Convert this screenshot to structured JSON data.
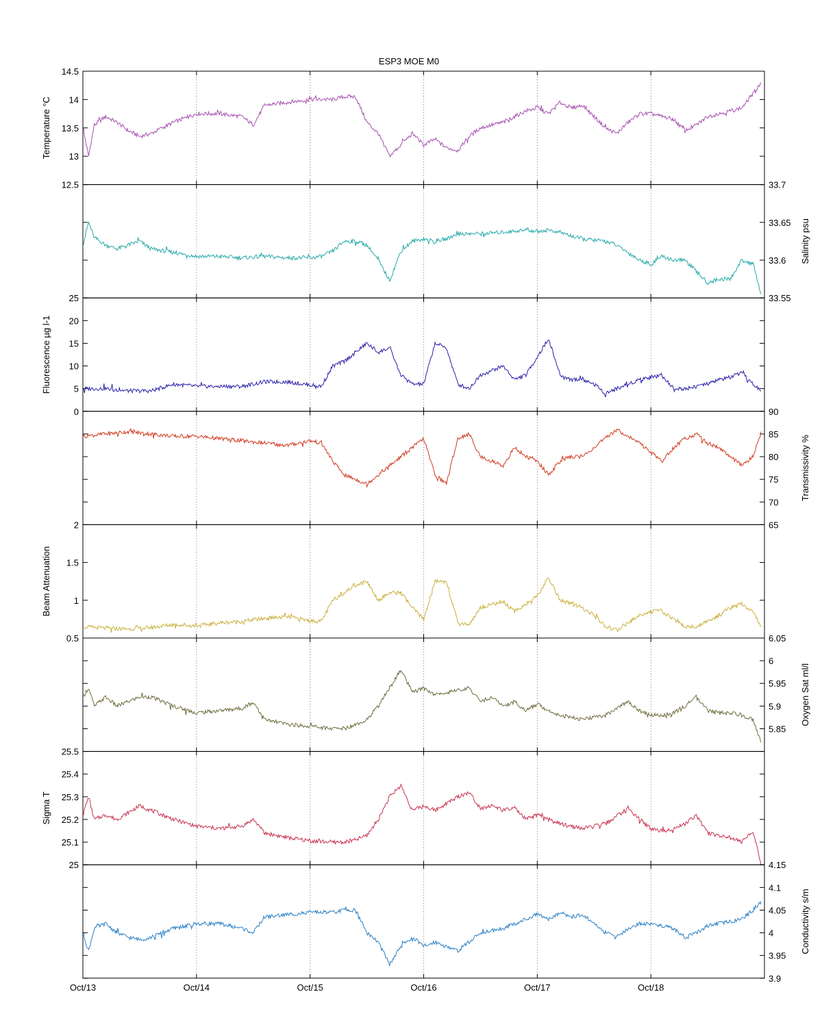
{
  "title": "ESP3 MOE   M0",
  "x_axis": {
    "type": "date",
    "range": [
      "2012-10-13",
      "2012-10-19"
    ],
    "ticks": [
      {
        "label": "Oct/13",
        "value": 0
      },
      {
        "label": "Oct/14",
        "value": 1
      },
      {
        "label": "Oct/15",
        "value": 2
      },
      {
        "label": "Oct/16",
        "value": 3
      },
      {
        "label": "Oct/17",
        "value": 4
      },
      {
        "label": "Oct/18",
        "value": 5
      }
    ],
    "grid": "dotted vertical"
  },
  "chart_data": [
    {
      "type": "line",
      "ylabel": "Temperature °C",
      "axis_side": "left",
      "color": "#a64fb0",
      "ylim": [
        12.5,
        14.5
      ],
      "ticks": [
        12.5,
        13,
        13.5,
        14,
        14.5
      ],
      "x": [
        0,
        0.05,
        0.1,
        0.2,
        0.3,
        0.4,
        0.5,
        0.6,
        0.8,
        1,
        1.2,
        1.4,
        1.5,
        1.6,
        2,
        2.2,
        2.3,
        2.4,
        2.5,
        2.6,
        2.7,
        2.8,
        2.9,
        3,
        3.1,
        3.2,
        3.3,
        3.4,
        3.5,
        3.7,
        3.8,
        3.9,
        4,
        4.1,
        4.2,
        4.3,
        4.4,
        4.6,
        4.7,
        4.8,
        4.9,
        5,
        5.1,
        5.2,
        5.3,
        5.4,
        5.5,
        5.6,
        5.7,
        5.8,
        5.9,
        5.97
      ],
      "values": [
        13.5,
        13.0,
        13.55,
        13.7,
        13.6,
        13.45,
        13.35,
        13.4,
        13.6,
        13.75,
        13.75,
        13.7,
        13.55,
        13.9,
        14.0,
        14.0,
        14.05,
        14.05,
        13.6,
        13.4,
        13.0,
        13.2,
        13.4,
        13.2,
        13.3,
        13.15,
        13.1,
        13.35,
        13.5,
        13.6,
        13.7,
        13.8,
        13.85,
        13.75,
        13.95,
        13.85,
        13.9,
        13.5,
        13.4,
        13.6,
        13.75,
        13.75,
        13.7,
        13.65,
        13.45,
        13.55,
        13.7,
        13.75,
        13.8,
        13.85,
        14.1,
        14.3
      ]
    },
    {
      "type": "line",
      "ylabel": "Salinity psu",
      "axis_side": "right",
      "color": "#27a9a8",
      "ylim": [
        33.55,
        33.7
      ],
      "ticks": [
        33.55,
        33.6,
        33.65,
        33.7
      ],
      "x": [
        0,
        0.05,
        0.1,
        0.2,
        0.3,
        0.4,
        0.5,
        0.6,
        0.8,
        1,
        1.2,
        1.4,
        1.6,
        1.8,
        2,
        2.1,
        2.2,
        2.3,
        2.4,
        2.5,
        2.6,
        2.7,
        2.8,
        2.9,
        3,
        3.1,
        3.2,
        3.3,
        3.5,
        3.7,
        3.9,
        4,
        4.1,
        4.2,
        4.3,
        4.4,
        4.6,
        4.7,
        4.8,
        4.9,
        5,
        5.1,
        5.2,
        5.3,
        5.4,
        5.5,
        5.6,
        5.7,
        5.8,
        5.9,
        5.97
      ],
      "values": [
        33.62,
        33.65,
        33.63,
        33.62,
        33.615,
        33.62,
        33.625,
        33.615,
        33.61,
        33.605,
        33.605,
        33.603,
        33.605,
        33.603,
        33.603,
        33.605,
        33.612,
        33.625,
        33.625,
        33.62,
        33.6,
        33.573,
        33.612,
        33.625,
        33.628,
        33.625,
        33.628,
        33.635,
        33.635,
        33.637,
        33.64,
        33.638,
        33.64,
        33.637,
        33.632,
        33.628,
        33.625,
        33.62,
        33.61,
        33.6,
        33.595,
        33.605,
        33.6,
        33.6,
        33.585,
        33.57,
        33.575,
        33.575,
        33.6,
        33.595,
        33.555
      ]
    },
    {
      "type": "line",
      "ylabel": "Fluorescence µg l-1",
      "axis_side": "left",
      "color": "#2a1fa8",
      "ylim": [
        0,
        25
      ],
      "ticks": [
        0,
        5,
        10,
        15,
        20,
        25
      ],
      "x": [
        0,
        0.2,
        0.4,
        0.6,
        0.8,
        1,
        1.2,
        1.4,
        1.6,
        1.8,
        2,
        2.1,
        2.2,
        2.3,
        2.4,
        2.5,
        2.6,
        2.7,
        2.8,
        2.9,
        3,
        3.1,
        3.2,
        3.3,
        3.4,
        3.5,
        3.6,
        3.7,
        3.8,
        3.9,
        4,
        4.1,
        4.2,
        4.3,
        4.4,
        4.5,
        4.6,
        4.7,
        4.8,
        4.9,
        5,
        5.1,
        5.2,
        5.3,
        5.4,
        5.5,
        5.6,
        5.7,
        5.8,
        5.9,
        5.97
      ],
      "values": [
        5,
        5,
        4.5,
        4.5,
        6,
        5.5,
        5.5,
        5.5,
        6.5,
        6.5,
        5.8,
        5.5,
        10,
        11,
        13,
        15,
        13,
        14,
        8,
        6,
        6,
        15,
        14,
        6,
        5,
        8,
        9,
        10,
        7,
        8,
        12,
        16,
        8,
        7,
        7,
        6,
        4,
        5,
        6,
        7,
        7.5,
        8,
        5,
        5,
        5.5,
        6,
        7,
        7.5,
        8.5,
        6,
        4.5
      ]
    },
    {
      "type": "line",
      "ylabel": "Transmissivity %",
      "axis_side": "right",
      "color": "#d03a1f",
      "ylim": [
        65,
        90
      ],
      "ticks": [
        65,
        70,
        75,
        80,
        85,
        90
      ],
      "x": [
        0,
        0.2,
        0.4,
        0.6,
        0.8,
        1,
        1.2,
        1.4,
        1.6,
        1.8,
        2,
        2.1,
        2.2,
        2.3,
        2.4,
        2.5,
        2.6,
        2.7,
        2.8,
        2.9,
        3,
        3.1,
        3.2,
        3.3,
        3.4,
        3.5,
        3.6,
        3.7,
        3.8,
        3.9,
        4,
        4.1,
        4.2,
        4.3,
        4.4,
        4.5,
        4.6,
        4.7,
        4.8,
        4.9,
        5,
        5.1,
        5.2,
        5.3,
        5.4,
        5.5,
        5.6,
        5.7,
        5.8,
        5.9,
        5.97
      ],
      "values": [
        84.5,
        85,
        85.5,
        85,
        84.5,
        84.5,
        84,
        83.5,
        83,
        82.5,
        83.5,
        83,
        79,
        76,
        75,
        74,
        76,
        78,
        80,
        82,
        84,
        76,
        74,
        84,
        85,
        80,
        79,
        78,
        82,
        80,
        79,
        76,
        79,
        80,
        80,
        82,
        84,
        86,
        84.5,
        83,
        81,
        79,
        82,
        84,
        85,
        83,
        82,
        80,
        78,
        80,
        85.5
      ]
    },
    {
      "type": "line",
      "ylabel": "Beam Attenuation",
      "axis_side": "left",
      "color": "#c9ae3a",
      "ylim": [
        0.5,
        2
      ],
      "ticks": [
        0.5,
        1,
        1.5,
        2
      ],
      "x": [
        0,
        0.2,
        0.4,
        0.6,
        0.8,
        1,
        1.2,
        1.4,
        1.6,
        1.8,
        2,
        2.1,
        2.2,
        2.3,
        2.4,
        2.5,
        2.6,
        2.7,
        2.8,
        2.9,
        3,
        3.1,
        3.2,
        3.3,
        3.4,
        3.5,
        3.6,
        3.7,
        3.8,
        3.9,
        4,
        4.1,
        4.2,
        4.3,
        4.4,
        4.5,
        4.6,
        4.7,
        4.8,
        4.9,
        5,
        5.1,
        5.2,
        5.3,
        5.4,
        5.5,
        5.6,
        5.7,
        5.8,
        5.9,
        5.97
      ],
      "values": [
        0.65,
        0.63,
        0.62,
        0.64,
        0.68,
        0.66,
        0.7,
        0.72,
        0.76,
        0.78,
        0.73,
        0.72,
        1.0,
        1.1,
        1.2,
        1.25,
        1.0,
        1.1,
        1.1,
        0.9,
        0.75,
        1.25,
        1.25,
        0.7,
        0.68,
        0.9,
        0.95,
        0.98,
        0.85,
        0.95,
        1.05,
        1.3,
        1.0,
        0.95,
        0.9,
        0.8,
        0.65,
        0.6,
        0.7,
        0.8,
        0.85,
        0.85,
        0.75,
        0.65,
        0.65,
        0.72,
        0.8,
        0.9,
        0.95,
        0.85,
        0.65
      ]
    },
    {
      "type": "line",
      "ylabel": "Oxygen Sat ml/l",
      "axis_side": "right",
      "color": "#6e6b3c",
      "ylim": [
        5.8,
        6.05
      ],
      "ticks": [
        5.85,
        5.9,
        5.95,
        6,
        6.05
      ],
      "x": [
        0,
        0.05,
        0.1,
        0.2,
        0.3,
        0.4,
        0.5,
        0.6,
        0.8,
        1,
        1.2,
        1.4,
        1.5,
        1.6,
        1.8,
        2,
        2.2,
        2.3,
        2.4,
        2.5,
        2.6,
        2.7,
        2.8,
        2.9,
        3,
        3.1,
        3.2,
        3.3,
        3.4,
        3.5,
        3.6,
        3.7,
        3.8,
        3.9,
        4,
        4.1,
        4.2,
        4.4,
        4.6,
        4.8,
        4.9,
        5,
        5.1,
        5.2,
        5.3,
        5.4,
        5.5,
        5.6,
        5.7,
        5.8,
        5.9,
        5.97
      ],
      "values": [
        5.92,
        5.94,
        5.9,
        5.92,
        5.9,
        5.91,
        5.92,
        5.92,
        5.9,
        5.885,
        5.89,
        5.895,
        5.91,
        5.87,
        5.86,
        5.855,
        5.85,
        5.85,
        5.86,
        5.87,
        5.9,
        5.94,
        5.98,
        5.93,
        5.94,
        5.925,
        5.93,
        5.935,
        5.94,
        5.91,
        5.92,
        5.9,
        5.91,
        5.89,
        5.905,
        5.89,
        5.88,
        5.87,
        5.88,
        5.91,
        5.89,
        5.88,
        5.88,
        5.885,
        5.9,
        5.92,
        5.89,
        5.885,
        5.885,
        5.88,
        5.87,
        5.82
      ]
    },
    {
      "type": "line",
      "ylabel": "Sigma T",
      "axis_side": "left",
      "color": "#c8334e",
      "ylim": [
        25,
        25.5
      ],
      "ticks": [
        25,
        25.1,
        25.2,
        25.3,
        25.4,
        25.5
      ],
      "x": [
        0,
        0.05,
        0.1,
        0.2,
        0.3,
        0.4,
        0.5,
        0.6,
        0.8,
        1,
        1.2,
        1.4,
        1.5,
        1.6,
        1.8,
        2,
        2.2,
        2.3,
        2.4,
        2.5,
        2.6,
        2.7,
        2.8,
        2.9,
        3,
        3.1,
        3.2,
        3.3,
        3.4,
        3.5,
        3.6,
        3.7,
        3.8,
        3.9,
        4,
        4.1,
        4.2,
        4.4,
        4.6,
        4.8,
        4.9,
        5,
        5.1,
        5.2,
        5.3,
        5.4,
        5.5,
        5.6,
        5.7,
        5.8,
        5.9,
        5.97
      ],
      "values": [
        25.22,
        25.3,
        25.2,
        25.22,
        25.2,
        25.23,
        25.26,
        25.24,
        25.2,
        25.17,
        25.16,
        25.17,
        25.2,
        25.14,
        25.12,
        25.105,
        25.1,
        25.1,
        25.11,
        25.13,
        25.2,
        25.3,
        25.35,
        25.24,
        25.26,
        25.24,
        25.27,
        25.3,
        25.32,
        25.25,
        25.26,
        25.24,
        25.25,
        25.2,
        25.22,
        25.2,
        25.18,
        25.16,
        25.18,
        25.25,
        25.2,
        25.16,
        25.15,
        25.16,
        25.18,
        25.22,
        25.14,
        25.13,
        25.12,
        25.1,
        25.15,
        25.0
      ]
    },
    {
      "type": "line",
      "ylabel": "Conductivity s/m",
      "axis_side": "right",
      "color": "#2a7fc4",
      "ylim": [
        3.9,
        4.15
      ],
      "ticks": [
        3.9,
        3.95,
        4,
        4.05,
        4.1,
        4.15
      ],
      "x": [
        0,
        0.05,
        0.1,
        0.2,
        0.3,
        0.4,
        0.5,
        0.6,
        0.8,
        1,
        1.2,
        1.4,
        1.5,
        1.6,
        2,
        2.2,
        2.3,
        2.4,
        2.5,
        2.6,
        2.7,
        2.8,
        2.9,
        3,
        3.1,
        3.2,
        3.3,
        3.4,
        3.5,
        3.7,
        3.8,
        3.9,
        4,
        4.1,
        4.2,
        4.3,
        4.4,
        4.6,
        4.7,
        4.8,
        4.9,
        5,
        5.1,
        5.2,
        5.3,
        5.4,
        5.5,
        5.6,
        5.7,
        5.8,
        5.9,
        5.97
      ],
      "values": [
        4.0,
        3.96,
        4.01,
        4.02,
        4.0,
        3.99,
        3.985,
        3.99,
        4.01,
        4.02,
        4.02,
        4.01,
        4.0,
        4.035,
        4.045,
        4.045,
        4.05,
        4.05,
        4.0,
        3.98,
        3.93,
        3.97,
        3.99,
        3.97,
        3.98,
        3.97,
        3.96,
        3.98,
        4.0,
        4.01,
        4.02,
        4.03,
        4.04,
        4.03,
        4.045,
        4.035,
        4.04,
        4.0,
        3.99,
        4.01,
        4.02,
        4.02,
        4.015,
        4.01,
        3.99,
        4.0,
        4.015,
        4.02,
        4.025,
        4.03,
        4.05,
        4.07
      ]
    }
  ]
}
